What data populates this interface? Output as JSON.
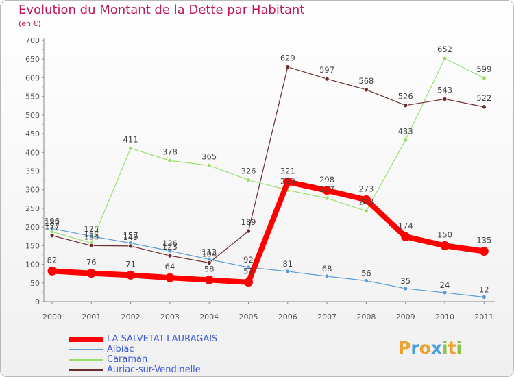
{
  "title": "Evolution du Montant de la Dette par Habitant",
  "subtitle": "(en €)",
  "brand": {
    "letters": [
      "P",
      "r",
      "o",
      "x",
      "i",
      "t",
      "i"
    ],
    "colors": [
      "#f0a030",
      "#4aa0e0",
      "#f0a030",
      "#4aa0e0",
      "#8bc34a",
      "#f0a030",
      "#8bc34a"
    ]
  },
  "chart_data": {
    "type": "line",
    "title": "Evolution du Montant de la Dette par Habitant",
    "subtitle": "(en €)",
    "xlabel": "",
    "ylabel": "",
    "x": [
      "2000",
      "2001",
      "2002",
      "2003",
      "2004",
      "2005",
      "2006",
      "2007",
      "2008",
      "2009",
      "2010",
      "2011"
    ],
    "yticks": [
      0,
      50,
      100,
      150,
      200,
      250,
      300,
      350,
      400,
      450,
      500,
      550,
      600,
      650,
      700
    ],
    "ylim": [
      0,
      700
    ],
    "grid": false,
    "legend_position": "bottom-left",
    "series": [
      {
        "name": "LA SALVETAT-LAURAGAIS",
        "color": "#ff0000",
        "values": [
          82,
          76,
          71,
          64,
          58,
          52,
          321,
          298,
          273,
          174,
          150,
          135
        ],
        "labels": [
          "82",
          "76",
          "71",
          "64",
          "58",
          "52",
          "321",
          "298",
          "273",
          "174",
          "150",
          "135"
        ]
      },
      {
        "name": "Albiac",
        "color": "#5b9bd5",
        "values": [
          196,
          175,
          157,
          136,
          113,
          92,
          81,
          68,
          56,
          35,
          24,
          12
        ],
        "labels": [
          "196",
          "175",
          "157",
          "136",
          "113",
          "92",
          "81",
          "68",
          "56",
          "35",
          "24",
          "12"
        ]
      },
      {
        "name": "Caraman",
        "color": "#99e06b",
        "values": [
          187,
          157,
          411,
          378,
          365,
          326,
          299,
          277,
          243,
          433,
          652,
          599
        ],
        "labels": [
          "187",
          "157",
          "411",
          "378",
          "365",
          "326",
          "299",
          "277",
          "243",
          "433",
          "652",
          "599"
        ]
      },
      {
        "name": "Auriac-sur-Vendinelle",
        "color": "#6b2c2c",
        "values": [
          177,
          150,
          149,
          123,
          104,
          189,
          629,
          597,
          568,
          526,
          543,
          522
        ],
        "labels": [
          "177",
          "150",
          "149",
          "123",
          "104",
          "189",
          "629",
          "597",
          "568",
          "526",
          "543",
          "522"
        ]
      }
    ]
  }
}
